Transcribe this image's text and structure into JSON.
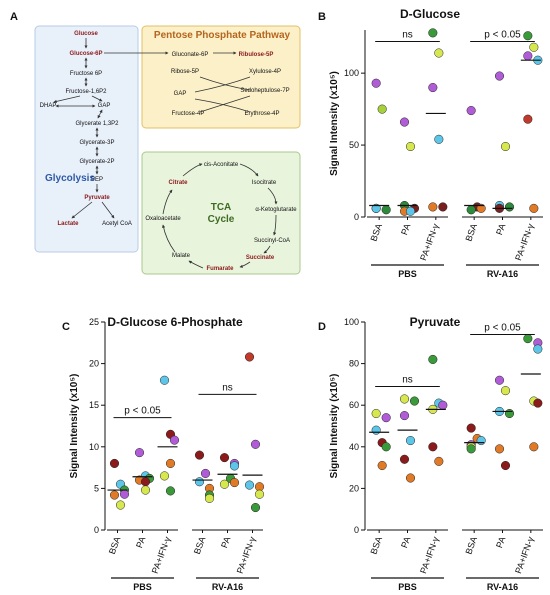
{
  "panel_letters": {
    "a": "A",
    "b": "B",
    "c": "C",
    "d": "D"
  },
  "diagram": {
    "glycolysis": {
      "title": "Glycolysis",
      "nodes": [
        "Glucose",
        "Glucose-6P",
        "Fructose 6P",
        "Fructose-1,6P2",
        "DHAP",
        "GAP",
        "Glycerate 1,3P2",
        "Glycerate-3P",
        "Glycerate-2P",
        "PEP",
        "Pyruvate",
        "Lactate",
        "Acetyl CoA"
      ]
    },
    "ppp": {
      "title": "Pentose Phosphate Pathway",
      "nodes": [
        "Gluconate-6P",
        "Ribulose-5P",
        "Ribose-5P",
        "Xylulose-4P",
        "GAP",
        "Sedoheptulose-7P",
        "Fructose-4P",
        "Erythrose-4P"
      ]
    },
    "tca": {
      "title_line1": "TCA",
      "title_line2": "Cycle",
      "nodes": [
        "cis-Aconitate",
        "Citrate",
        "Isocitrate",
        "α-Ketoglutarate",
        "Oxaloacetate",
        "Succinyl-CoA",
        "Malate",
        "Succinate",
        "Fumarate"
      ]
    },
    "colors": {
      "gly_fill": "#e8f0fa",
      "ppp_fill": "#fbf0c8",
      "tca_fill": "#e9f4dd",
      "highlight": "#8b1a1a"
    }
  },
  "chart_data": [
    {
      "panel": "B",
      "type": "scatter",
      "title": "D-Glucose",
      "ylabel": "Signal Intensity (x10⁵)",
      "ylim": [
        0,
        130
      ],
      "yticks": [
        0,
        50,
        100
      ],
      "categories": [
        "BSA",
        "PA",
        "PA+IFN-γ",
        "BSA",
        "PA",
        "PA+IFN-γ"
      ],
      "groups": [
        {
          "name": "PBS",
          "span": [
            0,
            2
          ]
        },
        {
          "name": "RV-A16",
          "span": [
            3,
            5
          ]
        }
      ],
      "points": [
        [
          {
            "y": 93,
            "c": "#b05cd6"
          },
          {
            "y": 75,
            "c": "#a7d13b"
          },
          {
            "y": 6,
            "c": "#e07a26"
          },
          {
            "y": 5,
            "c": "#2c8a3a"
          },
          {
            "y": 6,
            "c": "#5cc5e8"
          }
        ],
        [
          {
            "y": 66,
            "c": "#b05cd6"
          },
          {
            "y": 49,
            "c": "#d7e84e"
          },
          {
            "y": 8,
            "c": "#2c8a3a"
          },
          {
            "y": 6,
            "c": "#7a1f1f"
          },
          {
            "y": 4,
            "c": "#e07a26"
          },
          {
            "y": 4,
            "c": "#5cc5e8"
          }
        ],
        [
          {
            "y": 128,
            "c": "#3a9a3a"
          },
          {
            "y": 114,
            "c": "#d7e84e"
          },
          {
            "y": 90,
            "c": "#b05cd6"
          },
          {
            "y": 54,
            "c": "#5cc5e8"
          },
          {
            "y": 7,
            "c": "#e07a26"
          },
          {
            "y": 7,
            "c": "#7a1f1f"
          }
        ],
        [
          {
            "y": 74,
            "c": "#b05cd6"
          },
          {
            "y": 7,
            "c": "#7a1f1f"
          },
          {
            "y": 6,
            "c": "#e07a26"
          },
          {
            "y": 5,
            "c": "#2c8a3a"
          }
        ],
        [
          {
            "y": 98,
            "c": "#b05cd6"
          },
          {
            "y": 49,
            "c": "#d7e84e"
          },
          {
            "y": 8,
            "c": "#5cc5e8"
          },
          {
            "y": 7,
            "c": "#2c8a3a"
          },
          {
            "y": 6,
            "c": "#7a1f1f"
          }
        ],
        [
          {
            "y": 126,
            "c": "#3a9a3a"
          },
          {
            "y": 118,
            "c": "#d7e84e"
          },
          {
            "y": 112,
            "c": "#b05cd6"
          },
          {
            "y": 109,
            "c": "#5cc5e8"
          },
          {
            "y": 68,
            "c": "#c0392b"
          },
          {
            "y": 6,
            "c": "#e07a26"
          }
        ]
      ],
      "means": [
        8,
        8,
        72,
        8,
        6,
        109
      ],
      "annotations": [
        {
          "text": "ns",
          "from": 0,
          "to": 2,
          "y": 122
        },
        {
          "text": "p < 0.05",
          "from": 3,
          "to": 5,
          "y": 122
        }
      ]
    },
    {
      "panel": "C",
      "type": "scatter",
      "title": "D-Glucose 6-Phosphate",
      "ylabel": "Signal Intensity (x10⁵)",
      "ylim": [
        0,
        25
      ],
      "yticks": [
        0,
        5,
        10,
        15,
        20,
        25
      ],
      "categories": [
        "BSA",
        "PA",
        "PA+IFN-γ",
        "BSA",
        "PA",
        "PA+IFN-γ"
      ],
      "groups": [
        {
          "name": "PBS",
          "span": [
            0,
            2
          ]
        },
        {
          "name": "RV-A16",
          "span": [
            3,
            5
          ]
        }
      ],
      "points": [
        [
          {
            "y": 8,
            "c": "#8b1a1a"
          },
          {
            "y": 5.5,
            "c": "#5cc5e8"
          },
          {
            "y": 4.8,
            "c": "#3a9a3a"
          },
          {
            "y": 4.3,
            "c": "#b05cd6"
          },
          {
            "y": 4.2,
            "c": "#e07a26"
          },
          {
            "y": 3,
            "c": "#d7e84e"
          }
        ],
        [
          {
            "y": 9.3,
            "c": "#b05cd6"
          },
          {
            "y": 6.5,
            "c": "#5cc5e8"
          },
          {
            "y": 6.2,
            "c": "#3a9a3a"
          },
          {
            "y": 6,
            "c": "#e07a26"
          },
          {
            "y": 5.8,
            "c": "#8b1a1a"
          },
          {
            "y": 4.8,
            "c": "#d7e84e"
          }
        ],
        [
          {
            "y": 18,
            "c": "#5cc5e8"
          },
          {
            "y": 11.5,
            "c": "#8b1a1a"
          },
          {
            "y": 10.8,
            "c": "#b05cd6"
          },
          {
            "y": 8,
            "c": "#e07a26"
          },
          {
            "y": 6.5,
            "c": "#d7e84e"
          },
          {
            "y": 4.7,
            "c": "#3a9a3a"
          }
        ],
        [
          {
            "y": 9,
            "c": "#8b1a1a"
          },
          {
            "y": 6.8,
            "c": "#b05cd6"
          },
          {
            "y": 5.8,
            "c": "#5cc5e8"
          },
          {
            "y": 5,
            "c": "#e07a26"
          },
          {
            "y": 4.2,
            "c": "#3a9a3a"
          },
          {
            "y": 3.8,
            "c": "#d7e84e"
          }
        ],
        [
          {
            "y": 8.7,
            "c": "#8b1a1a"
          },
          {
            "y": 8,
            "c": "#b05cd6"
          },
          {
            "y": 7.7,
            "c": "#5cc5e8"
          },
          {
            "y": 6.2,
            "c": "#3a9a3a"
          },
          {
            "y": 5.7,
            "c": "#e07a26"
          },
          {
            "y": 5.5,
            "c": "#d7e84e"
          }
        ],
        [
          {
            "y": 20.8,
            "c": "#c0392b"
          },
          {
            "y": 10.3,
            "c": "#b05cd6"
          },
          {
            "y": 5.4,
            "c": "#5cc5e8"
          },
          {
            "y": 5.2,
            "c": "#e07a26"
          },
          {
            "y": 4.3,
            "c": "#d7e84e"
          },
          {
            "y": 2.7,
            "c": "#3a9a3a"
          }
        ]
      ],
      "means": [
        4.8,
        6.4,
        10,
        6,
        6.7,
        6.6
      ],
      "annotations": [
        {
          "text": "p < 0.05",
          "from": 0,
          "to": 2,
          "y": 13.5
        },
        {
          "text": "ns",
          "from": 3,
          "to": 5,
          "y": 16.3
        }
      ]
    },
    {
      "panel": "D",
      "type": "scatter",
      "title": "Pyruvate",
      "ylabel": "Signal Intensity (x10⁵)",
      "ylim": [
        0,
        100
      ],
      "yticks": [
        0,
        20,
        40,
        60,
        80,
        100
      ],
      "categories": [
        "BSA",
        "PA",
        "PA+IFN-γ",
        "BSA",
        "PA",
        "PA+IFN-γ"
      ],
      "groups": [
        {
          "name": "PBS",
          "span": [
            0,
            2
          ]
        },
        {
          "name": "RV-A16",
          "span": [
            3,
            5
          ]
        }
      ],
      "points": [
        [
          {
            "y": 56,
            "c": "#d7e84e"
          },
          {
            "y": 54,
            "c": "#b05cd6"
          },
          {
            "y": 48,
            "c": "#5cc5e8"
          },
          {
            "y": 42,
            "c": "#8b1a1a"
          },
          {
            "y": 40,
            "c": "#3a9a3a"
          },
          {
            "y": 31,
            "c": "#e07a26"
          }
        ],
        [
          {
            "y": 63,
            "c": "#d7e84e"
          },
          {
            "y": 62,
            "c": "#3a9a3a"
          },
          {
            "y": 55,
            "c": "#b05cd6"
          },
          {
            "y": 43,
            "c": "#5cc5e8"
          },
          {
            "y": 34,
            "c": "#8b1a1a"
          },
          {
            "y": 25,
            "c": "#e07a26"
          }
        ],
        [
          {
            "y": 82,
            "c": "#3a9a3a"
          },
          {
            "y": 61,
            "c": "#5cc5e8"
          },
          {
            "y": 60,
            "c": "#b05cd6"
          },
          {
            "y": 58,
            "c": "#d7e84e"
          },
          {
            "y": 40,
            "c": "#8b1a1a"
          },
          {
            "y": 33,
            "c": "#e07a26"
          }
        ],
        [
          {
            "y": 49,
            "c": "#8b1a1a"
          },
          {
            "y": 44,
            "c": "#e07a26"
          },
          {
            "y": 43,
            "c": "#5cc5e8"
          },
          {
            "y": 41,
            "c": "#b05cd6"
          },
          {
            "y": 40,
            "c": "#d7e84e"
          },
          {
            "y": 39,
            "c": "#3a9a3a"
          }
        ],
        [
          {
            "y": 72,
            "c": "#b05cd6"
          },
          {
            "y": 67,
            "c": "#d7e84e"
          },
          {
            "y": 57,
            "c": "#5cc5e8"
          },
          {
            "y": 56,
            "c": "#3a9a3a"
          },
          {
            "y": 39,
            "c": "#e07a26"
          },
          {
            "y": 31,
            "c": "#8b1a1a"
          }
        ],
        [
          {
            "y": 92,
            "c": "#3a9a3a"
          },
          {
            "y": 90,
            "c": "#b05cd6"
          },
          {
            "y": 87,
            "c": "#5cc5e8"
          },
          {
            "y": 62,
            "c": "#d7e84e"
          },
          {
            "y": 61,
            "c": "#8b1a1a"
          },
          {
            "y": 40,
            "c": "#e07a26"
          }
        ]
      ],
      "means": [
        47,
        48,
        58,
        42,
        57,
        75
      ],
      "annotations": [
        {
          "text": "ns",
          "from": 0,
          "to": 2,
          "y": 69
        },
        {
          "text": "p < 0.05",
          "from": 3,
          "to": 5,
          "y": 94
        }
      ]
    }
  ]
}
